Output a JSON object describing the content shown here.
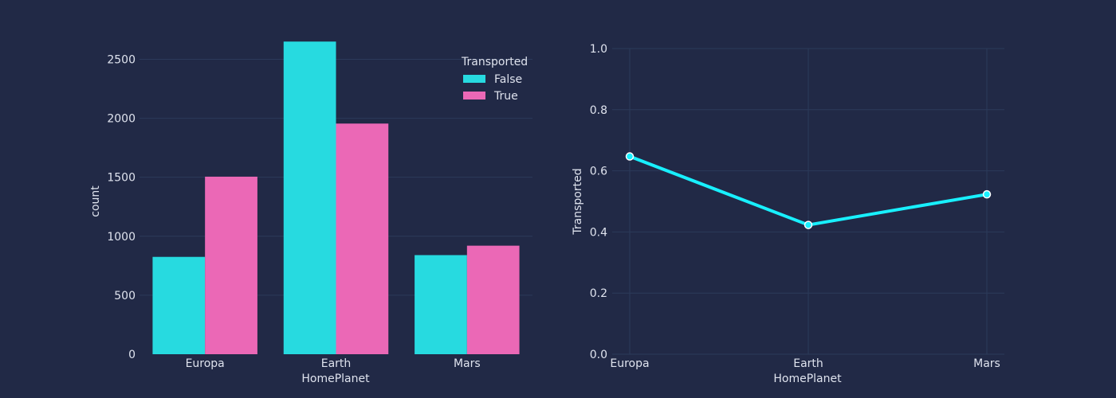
{
  "chart_data": [
    {
      "type": "bar",
      "categories": [
        "Europa",
        "Earth",
        "Mars"
      ],
      "series": [
        {
          "name": "False",
          "values": [
            825,
            2650,
            840
          ],
          "color": "#27dae0"
        },
        {
          "name": "True",
          "values": [
            1505,
            1955,
            920
          ],
          "color": "#eb68b6"
        }
      ],
      "xlabel": "HomePlanet",
      "ylabel": "count",
      "ylim": [
        0,
        2800
      ],
      "yticks": [
        0,
        500,
        1000,
        1500,
        2000,
        2500
      ],
      "legend": {
        "title": "Transported",
        "placement": "top-right"
      },
      "grid": "horizontal"
    },
    {
      "type": "line",
      "categories": [
        "Europa",
        "Earth",
        "Mars"
      ],
      "series": [
        {
          "values": [
            0.647,
            0.423,
            0.523
          ],
          "color": "#18f0ff",
          "markers": true
        }
      ],
      "xlabel": "HomePlanet",
      "ylabel": "Transported",
      "ylim": [
        0,
        1
      ],
      "yticks": [
        "0.0",
        "0.2",
        "0.4",
        "0.6",
        "0.8",
        "1.0"
      ],
      "grid": "both"
    }
  ]
}
